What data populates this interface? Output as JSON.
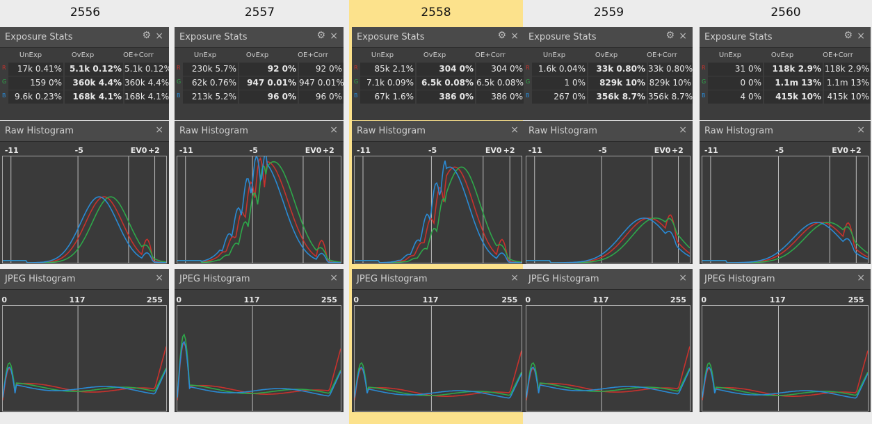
{
  "columns": [
    {
      "title": "2556",
      "selected": false,
      "stats": {
        "title": "Exposure Stats",
        "headers": [
          "UnExp",
          "OvExp",
          "OE+Corr"
        ],
        "rows": [
          {
            "ch": "R",
            "color": "#c8322d",
            "un": "17k 0.41%",
            "ov": "5.1k 0.12%",
            "oe": "5.1k 0.12%"
          },
          {
            "ch": "G",
            "color": "#2ea84a",
            "un": "159 0%",
            "ov": "360k 4.4%",
            "oe": "360k 4.4%"
          },
          {
            "ch": "B",
            "color": "#2a8ad4",
            "un": "9.6k 0.23%",
            "ov": "168k 4.1%",
            "oe": "168k 4.1%"
          }
        ]
      },
      "raw": {
        "title": "Raw Histogram",
        "ticks": [
          "-11",
          "-5",
          "EV0",
          "+2"
        ]
      },
      "jpeg": {
        "title": "JPEG Histogram",
        "ticks": [
          "0",
          "117",
          "255"
        ]
      }
    },
    {
      "title": "2557",
      "selected": false,
      "stats": {
        "title": "Exposure Stats",
        "headers": [
          "UnExp",
          "OvExp",
          "OE+Corr"
        ],
        "rows": [
          {
            "ch": "R",
            "color": "#c8322d",
            "un": "230k 5.7%",
            "ov": "92 0%",
            "oe": "92 0%"
          },
          {
            "ch": "G",
            "color": "#2ea84a",
            "un": "62k 0.76%",
            "ov": "947 0.01%",
            "oe": "947 0.01%"
          },
          {
            "ch": "B",
            "color": "#2a8ad4",
            "un": "213k 5.2%",
            "ov": "96 0%",
            "oe": "96 0%"
          }
        ]
      },
      "raw": {
        "title": "Raw Histogram",
        "ticks": [
          "-11",
          "-5",
          "EV0",
          "+2"
        ]
      },
      "jpeg": {
        "title": "JPEG Histogram",
        "ticks": [
          "0",
          "117",
          "255"
        ]
      }
    },
    {
      "title": "2558",
      "selected": true,
      "stats": {
        "title": "Exposure Stats",
        "headers": [
          "UnExp",
          "OvExp",
          "OE+Corr"
        ],
        "rows": [
          {
            "ch": "R",
            "color": "#c8322d",
            "un": "85k 2.1%",
            "ov": "304 0%",
            "oe": "304 0%"
          },
          {
            "ch": "G",
            "color": "#2ea84a",
            "un": "7.1k 0.09%",
            "ov": "6.5k 0.08%",
            "oe": "6.5k 0.08%"
          },
          {
            "ch": "B",
            "color": "#2a8ad4",
            "un": "67k 1.6%",
            "ov": "386 0%",
            "oe": "386 0%"
          }
        ]
      },
      "raw": {
        "title": "Raw Histogram",
        "ticks": [
          "-11",
          "-5",
          "EV0",
          "+2"
        ]
      },
      "jpeg": {
        "title": "JPEG Histogram",
        "ticks": [
          "0",
          "117",
          "255"
        ]
      }
    },
    {
      "title": "2559",
      "selected": false,
      "stats": {
        "title": "Exposure Stats",
        "headers": [
          "UnExp",
          "OvExp",
          "OE+Corr"
        ],
        "rows": [
          {
            "ch": "R",
            "color": "#c8322d",
            "un": "1.6k 0.04%",
            "ov": "33k 0.80%",
            "oe": "33k 0.80%"
          },
          {
            "ch": "G",
            "color": "#2ea84a",
            "un": "1 0%",
            "ov": "829k 10%",
            "oe": "829k 10%"
          },
          {
            "ch": "B",
            "color": "#2a8ad4",
            "un": "267 0%",
            "ov": "356k 8.7%",
            "oe": "356k 8.7%"
          }
        ]
      },
      "raw": {
        "title": "Raw Histogram",
        "ticks": [
          "-11",
          "-5",
          "EV0",
          "+2"
        ]
      },
      "jpeg": {
        "title": "JPEG Histogram",
        "ticks": [
          "0",
          "117",
          "255"
        ]
      }
    },
    {
      "title": "2560",
      "selected": false,
      "stats": {
        "title": "Exposure Stats",
        "headers": [
          "UnExp",
          "OvExp",
          "OE+Corr"
        ],
        "rows": [
          {
            "ch": "R",
            "color": "#c8322d",
            "un": "31 0%",
            "ov": "118k 2.9%",
            "oe": "118k 2.9%"
          },
          {
            "ch": "G",
            "color": "#2ea84a",
            "un": "0 0%",
            "ov": "1.1m 13%",
            "oe": "1.1m 13%"
          },
          {
            "ch": "B",
            "color": "#2a8ad4",
            "un": "4 0%",
            "ov": "415k 10%",
            "oe": "415k 10%"
          }
        ]
      },
      "raw": {
        "title": "Raw Histogram",
        "ticks": [
          "-11",
          "-5",
          "EV0",
          "+2"
        ]
      },
      "jpeg": {
        "title": "JPEG Histogram",
        "ticks": [
          "0",
          "117",
          "255"
        ]
      }
    }
  ],
  "icons": {
    "settings": "gear-icon",
    "close": "close-icon"
  }
}
